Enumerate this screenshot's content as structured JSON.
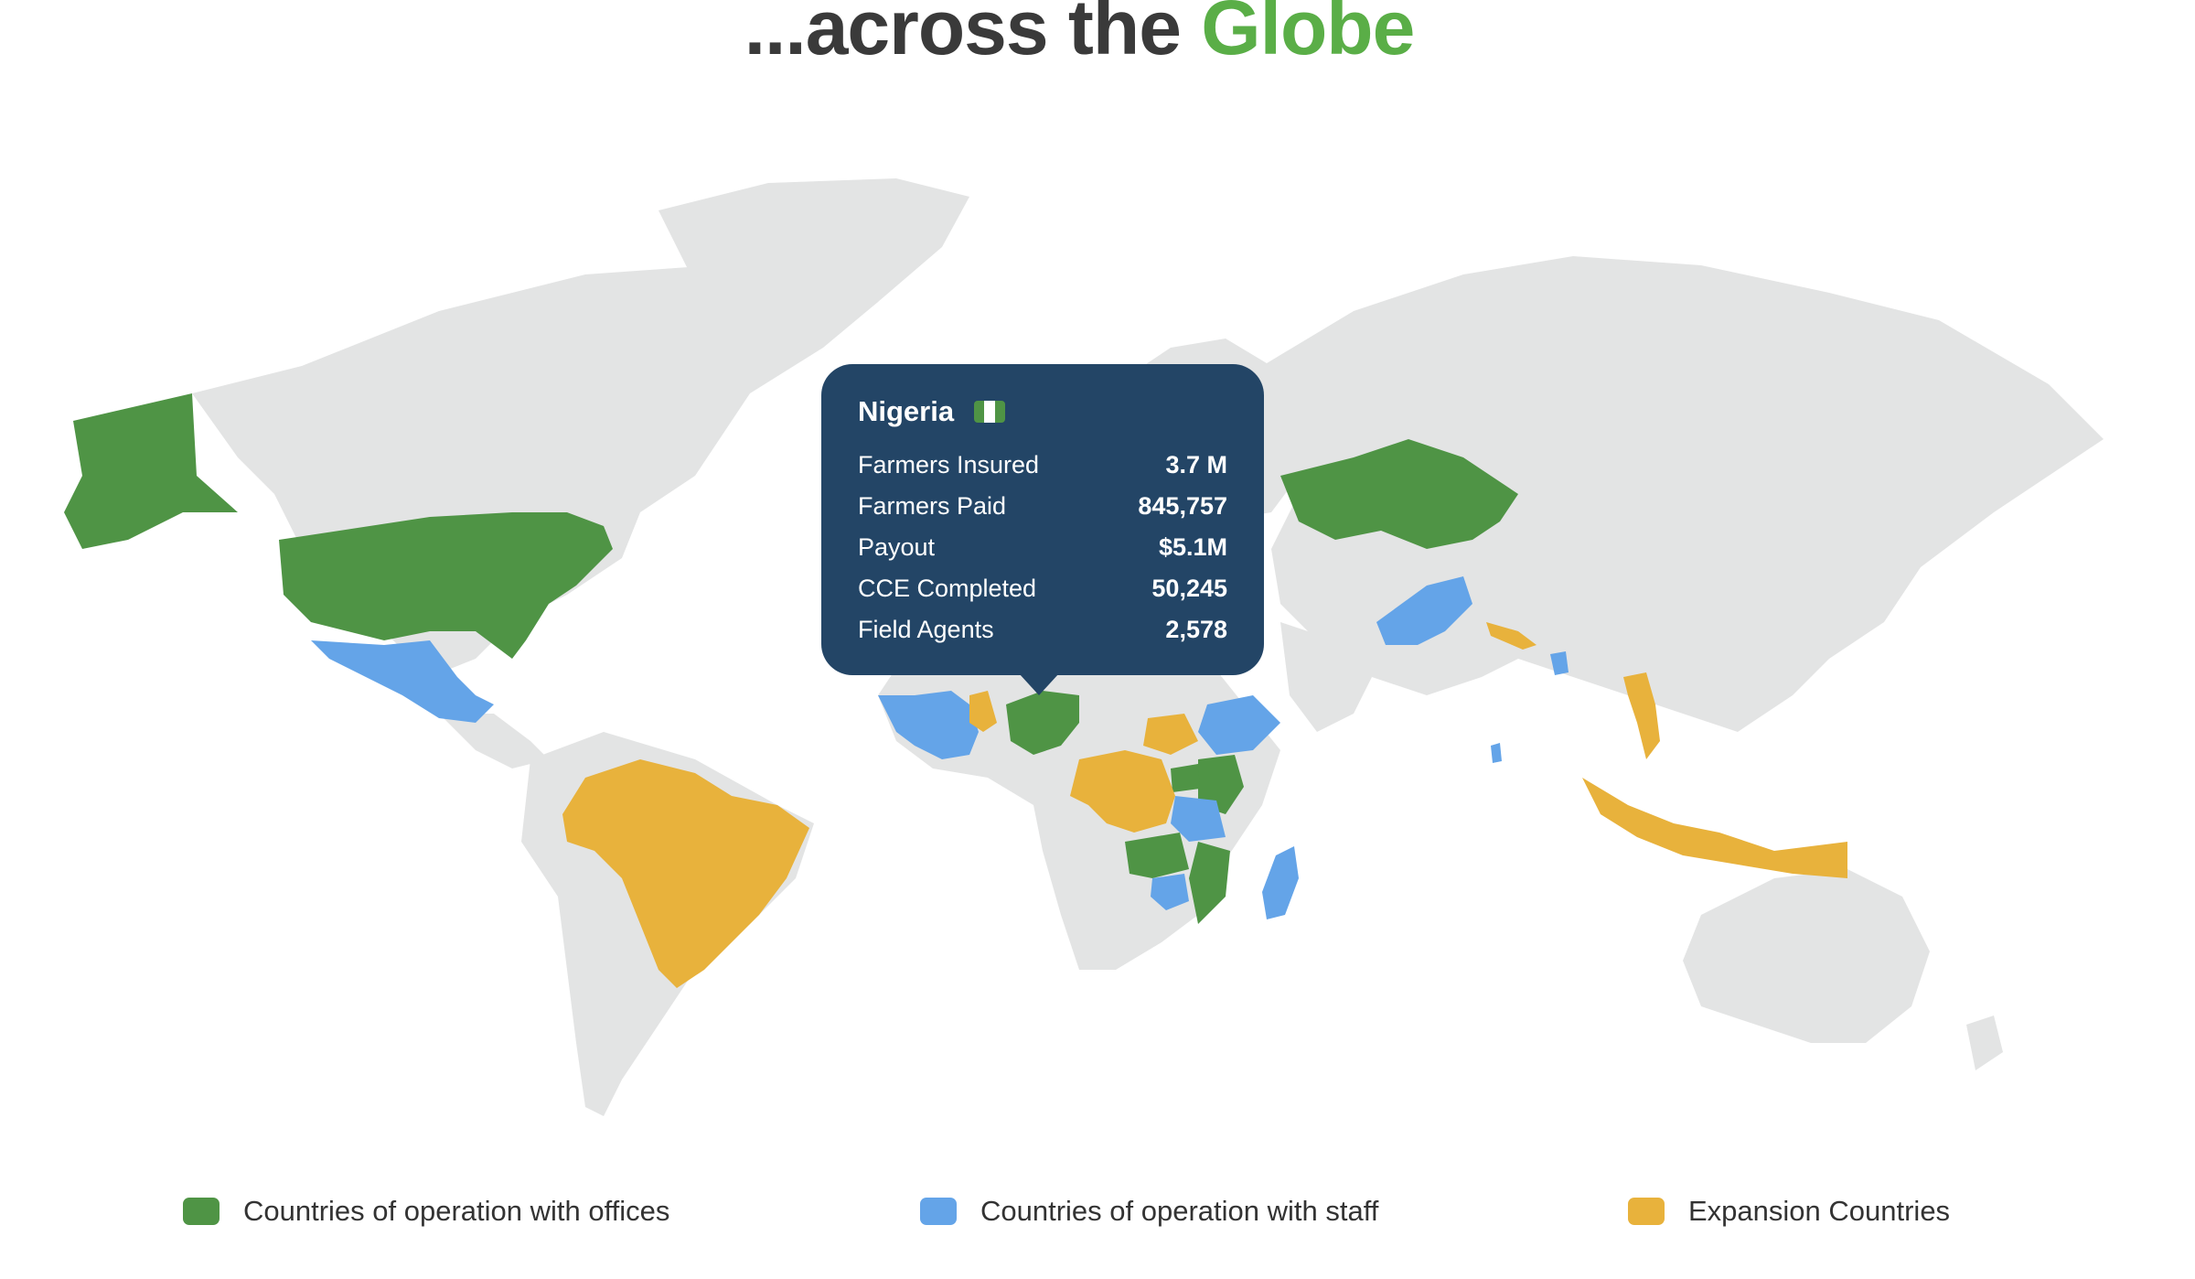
{
  "title": {
    "prefix": "...across the ",
    "highlight": "Globe"
  },
  "colors": {
    "offices": "#4f9445",
    "staff": "#64a4e8",
    "expansion": "#e8b23c",
    "land": "#e3e4e4",
    "tooltip_bg": "#234566",
    "accent": "#5aae47"
  },
  "tooltip": {
    "country": "Nigeria",
    "flag_icon": "nigeria-flag-icon",
    "rows": [
      {
        "label": "Farmers Insured",
        "value": "3.7 M"
      },
      {
        "label": "Farmers Paid",
        "value": "845,757"
      },
      {
        "label": "Payout",
        "value": "$5.1M"
      },
      {
        "label": "CCE Completed",
        "value": "50,245"
      },
      {
        "label": "Field Agents",
        "value": "2,578"
      }
    ]
  },
  "legend": [
    {
      "label": "Countries of operation with offices",
      "color": "#4f9445"
    },
    {
      "label": "Countries of operation with staff",
      "color": "#64a4e8"
    },
    {
      "label": "Expansion Countries",
      "color": "#e8b23c"
    }
  ]
}
